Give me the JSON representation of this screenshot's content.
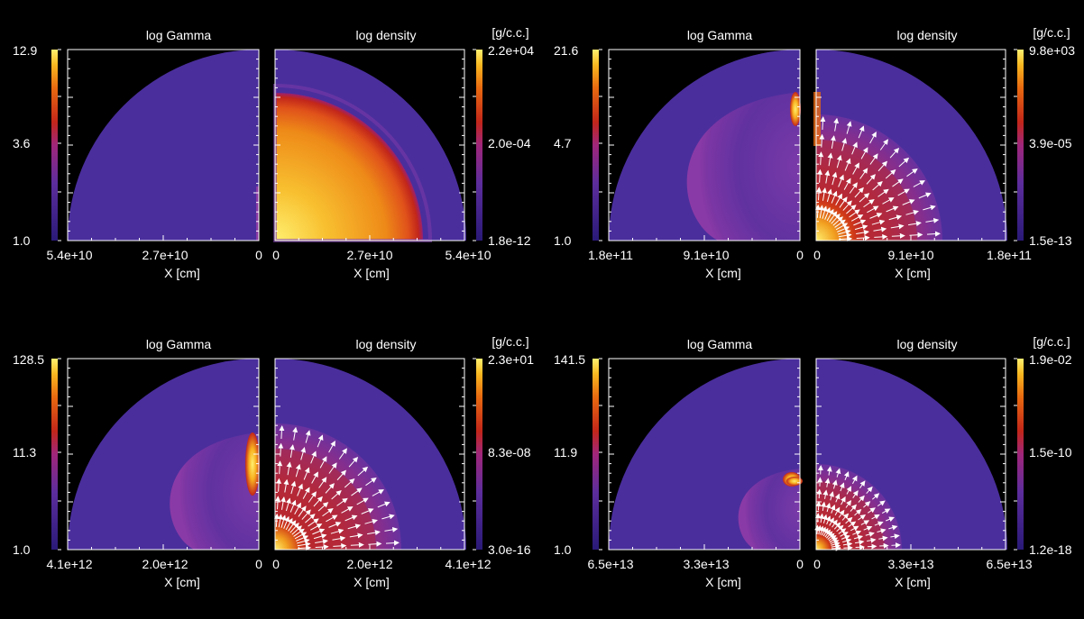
{
  "panels": [
    {
      "gamma_title": "log Gamma",
      "density_title": "log density",
      "density_unit": "[g/c.c.]",
      "gamma_ticks": [
        "12.9",
        "3.6",
        "1.0"
      ],
      "density_ticks": [
        "2.2e+04",
        "2.0e-04",
        "1.8e-12"
      ],
      "x_ticks_left": [
        "5.4e+10",
        "2.7e+10",
        "0"
      ],
      "x_ticks_right": [
        "0",
        "2.7e+10",
        "5.4e+10"
      ],
      "x_label": "X [cm]",
      "has_arrows": false
    },
    {
      "gamma_title": "log Gamma",
      "density_title": "log density",
      "density_unit": "[g/c.c.]",
      "gamma_ticks": [
        "21.6",
        "4.7",
        "1.0"
      ],
      "density_ticks": [
        "9.8e+03",
        "3.9e-05",
        "1.5e-13"
      ],
      "x_ticks_left": [
        "1.8e+11",
        "9.1e+10",
        "0"
      ],
      "x_ticks_right": [
        "0",
        "9.1e+10",
        "1.8e+11"
      ],
      "x_label": "X [cm]",
      "has_arrows": true
    },
    {
      "gamma_title": "log Gamma",
      "density_title": "log density",
      "density_unit": "[g/c.c.]",
      "gamma_ticks": [
        "128.5",
        "11.3",
        "1.0"
      ],
      "density_ticks": [
        "2.3e+01",
        "8.3e-08",
        "3.0e-16"
      ],
      "x_ticks_left": [
        "4.1e+12",
        "2.0e+12",
        "0"
      ],
      "x_ticks_right": [
        "0",
        "2.0e+12",
        "4.1e+12"
      ],
      "x_label": "X [cm]",
      "has_arrows": true
    },
    {
      "gamma_title": "log Gamma",
      "density_title": "log density",
      "density_unit": "[g/c.c.]",
      "gamma_ticks": [
        "141.5",
        "11.9",
        "1.0"
      ],
      "density_ticks": [
        "1.9e-02",
        "1.5e-10",
        "1.2e-18"
      ],
      "x_ticks_left": [
        "6.5e+13",
        "3.3e+13",
        "0"
      ],
      "x_ticks_right": [
        "0",
        "3.3e+13",
        "6.5e+13"
      ],
      "x_label": "X [cm]",
      "has_arrows": true
    }
  ],
  "colors": {
    "background": "#000000",
    "ambient": "#4a2e9c",
    "colormap": [
      "#2a1a78",
      "#5c2d9c",
      "#8f2a8a",
      "#c2261a",
      "#e86a10",
      "#f8b820",
      "#fff070"
    ]
  }
}
